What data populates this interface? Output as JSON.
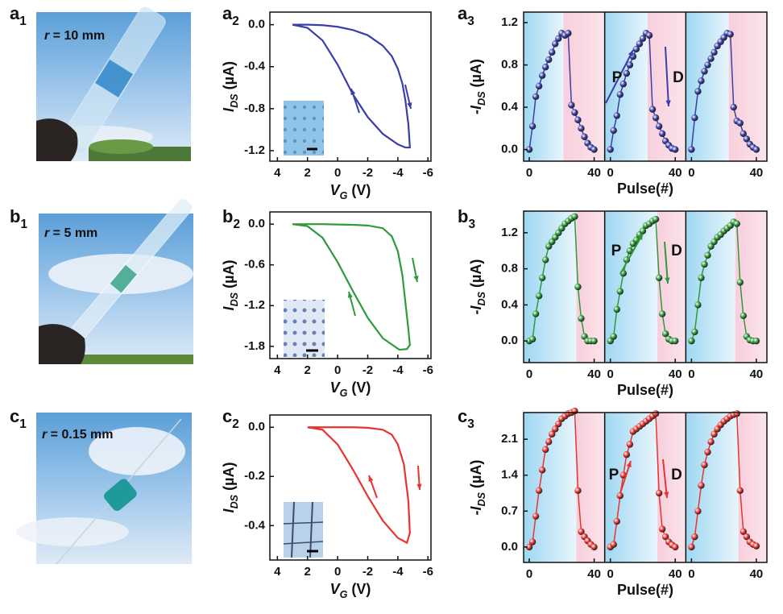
{
  "photos": [
    {
      "label": {
        "letter": "a",
        "sub": "1"
      },
      "caption": {
        "symbol": "r",
        "text": " = 10 mm"
      }
    },
    {
      "label": {
        "letter": "b",
        "sub": "1"
      },
      "caption": {
        "symbol": "r",
        "text": " = 5 mm"
      }
    },
    {
      "label": {
        "letter": "c",
        "sub": "1"
      },
      "caption": {
        "symbol": "r",
        "text": " = 0.15 mm"
      }
    }
  ],
  "chart_data": [
    {
      "type": "line",
      "label": {
        "letter": "a",
        "sub": "2"
      },
      "color": "#3a3ea6",
      "xlabel": {
        "symbol": "V",
        "sub": "G",
        "unit": "(V)"
      },
      "ylabel": {
        "symbol": "I",
        "sub": "DS",
        "unit": "(µA)"
      },
      "x": [
        3,
        2,
        1,
        0,
        -1,
        -2,
        -3,
        -3.6,
        -4,
        -4.3,
        -4.5,
        -4.7,
        -4.8,
        -4.5,
        -4,
        -3,
        -2,
        -1,
        0,
        1,
        2,
        3
      ],
      "values": [
        0,
        0,
        -0.005,
        -0.02,
        -0.05,
        -0.1,
        -0.2,
        -0.3,
        -0.42,
        -0.56,
        -0.72,
        -0.95,
        -1.17,
        -1.17,
        -1.14,
        -1.04,
        -0.88,
        -0.66,
        -0.38,
        -0.15,
        -0.03,
        0
      ],
      "xlim": [
        4.5,
        -6.2
      ],
      "xticks": [
        4,
        2,
        0,
        -2,
        -4,
        -6
      ],
      "ylim": [
        -1.3,
        0.12
      ],
      "yticks": [
        {
          "value": 0,
          "label": "0.0"
        },
        -0.4,
        -0.8,
        -1.2
      ]
    },
    {
      "type": "scatter",
      "label": {
        "letter": "a",
        "sub": "3"
      },
      "color": "#3a3ea6",
      "xlabel": "Pulse(#)",
      "ylabel": {
        "symbol": "-I",
        "sub": "DS",
        "unit": "(µA)"
      },
      "annotations": [
        "P",
        "D"
      ],
      "x": [
        0,
        2,
        4,
        6,
        8,
        10,
        12,
        14,
        16,
        18,
        20,
        22,
        24,
        26,
        28,
        30,
        32,
        34,
        36,
        38,
        40
      ],
      "series": [
        {
          "values": [
            0,
            0.22,
            0.5,
            0.6,
            0.7,
            0.78,
            0.85,
            0.92,
            1.0,
            1.05,
            1.1,
            1.08,
            1.1,
            0.42,
            0.35,
            0.28,
            0.2,
            0.12,
            0.06,
            0.02,
            0
          ]
        },
        {
          "values": [
            0,
            0.18,
            0.32,
            0.52,
            0.62,
            0.72,
            0.8,
            0.88,
            0.95,
            1.0,
            1.05,
            1.1,
            1.08,
            0.38,
            0.3,
            0.22,
            0.15,
            0.08,
            0.04,
            0.01,
            0
          ]
        },
        {
          "values": [
            0,
            0.3,
            0.55,
            0.65,
            0.74,
            0.8,
            0.86,
            0.92,
            0.98,
            1.02,
            1.06,
            1.1,
            1.09,
            0.4,
            0.27,
            0.25,
            0.15,
            0.1,
            0.05,
            0.02,
            0
          ]
        }
      ],
      "xlim": [
        -3.5,
        46.5
      ],
      "xticks": [
        0,
        40
      ],
      "ylim": [
        -0.11,
        1.3
      ],
      "yticks": [
        {
          "value": 0,
          "label": "0.0"
        },
        0.4,
        0.8,
        1.2
      ]
    },
    {
      "type": "line",
      "label": {
        "letter": "b",
        "sub": "2"
      },
      "color": "#2e9a3a",
      "xlabel": {
        "symbol": "V",
        "sub": "G",
        "unit": "(V)"
      },
      "ylabel": {
        "symbol": "I",
        "sub": "DS",
        "unit": "(µA)"
      },
      "x": [
        3,
        2,
        1,
        0,
        -1,
        -2,
        -3,
        -3.6,
        -4,
        -4.3,
        -4.5,
        -4.7,
        -4.8,
        -4.6,
        -4.1,
        -3,
        -2,
        -1,
        0,
        1,
        2,
        3
      ],
      "values": [
        0,
        0,
        0,
        -0.005,
        -0.01,
        -0.02,
        -0.06,
        -0.18,
        -0.4,
        -0.75,
        -1.15,
        -1.55,
        -1.78,
        -1.84,
        -1.85,
        -1.68,
        -1.38,
        -0.98,
        -0.56,
        -0.2,
        -0.03,
        0
      ],
      "xlim": [
        4.5,
        -6.2
      ],
      "xticks": [
        4,
        2,
        0,
        -2,
        -4,
        -6
      ],
      "ylim": [
        -1.98,
        0.18
      ],
      "yticks": [
        {
          "value": 0,
          "label": "0.0"
        },
        -0.6,
        -1.2,
        -1.8
      ]
    },
    {
      "type": "scatter",
      "label": {
        "letter": "b",
        "sub": "3"
      },
      "color": "#2e9a3a",
      "xlabel": "Pulse(#)",
      "ylabel": {
        "symbol": "-I",
        "sub": "DS",
        "unit": "(µA)"
      },
      "annotations": [
        "P",
        "D"
      ],
      "x": [
        0,
        2,
        4,
        6,
        8,
        10,
        12,
        14,
        16,
        18,
        20,
        22,
        24,
        26,
        28,
        30,
        32,
        34,
        36,
        38,
        40
      ],
      "series": [
        {
          "values": [
            0,
            0.02,
            0.3,
            0.5,
            0.7,
            0.9,
            1.05,
            1.1,
            1.15,
            1.2,
            1.25,
            1.3,
            1.33,
            1.36,
            1.38,
            0.6,
            0.25,
            0.05,
            0,
            0,
            0
          ]
        },
        {
          "values": [
            0,
            0.05,
            0.35,
            0.55,
            0.75,
            0.9,
            1.0,
            1.08,
            1.12,
            1.18,
            1.22,
            1.28,
            1.3,
            1.33,
            1.35,
            0.7,
            0.3,
            0.08,
            0.02,
            0,
            0
          ]
        },
        {
          "values": [
            0,
            0.1,
            0.4,
            0.7,
            0.85,
            0.95,
            1.05,
            1.1,
            1.15,
            1.18,
            1.22,
            1.25,
            1.28,
            1.32,
            1.3,
            0.65,
            0.28,
            0.05,
            0.01,
            0,
            0
          ]
        }
      ],
      "xlim": [
        -3.5,
        46.5
      ],
      "xticks": [
        0,
        40
      ],
      "ylim": [
        -0.24,
        1.44
      ],
      "yticks": [
        {
          "value": 0,
          "label": "0.0"
        },
        0.4,
        0.8,
        1.2
      ]
    },
    {
      "type": "line",
      "label": {
        "letter": "c",
        "sub": "2"
      },
      "color": "#e8332f",
      "xlabel": {
        "symbol": "V",
        "sub": "G",
        "unit": "(V)"
      },
      "ylabel": {
        "symbol": "I",
        "sub": "DS",
        "unit": "(µA)"
      },
      "x": [
        2,
        1,
        0,
        -1,
        -2,
        -3,
        -3.6,
        -4,
        -4.4,
        -4.7,
        -4.8,
        -4.6,
        -4,
        -3,
        -2,
        -1,
        0,
        1,
        2
      ],
      "values": [
        0,
        0,
        0,
        0,
        -0.002,
        -0.01,
        -0.03,
        -0.07,
        -0.15,
        -0.3,
        -0.43,
        -0.47,
        -0.45,
        -0.38,
        -0.28,
        -0.17,
        -0.07,
        -0.01,
        0
      ],
      "xlim": [
        4.5,
        -6.2
      ],
      "xticks": [
        4,
        2,
        0,
        -2,
        -4,
        -6
      ],
      "ylim": [
        -0.54,
        0.05
      ],
      "yticks": [
        {
          "value": 0,
          "label": "0.0"
        },
        -0.2,
        -0.4
      ]
    },
    {
      "type": "scatter",
      "label": {
        "letter": "c",
        "sub": "3"
      },
      "color": "#e8332f",
      "xlabel": "Pulse(#)",
      "ylabel": {
        "symbol": "-I",
        "sub": "DS",
        "unit": "(µA)"
      },
      "annotations": [
        "P",
        "D"
      ],
      "x": [
        0,
        2,
        4,
        6,
        8,
        10,
        12,
        14,
        16,
        18,
        20,
        22,
        24,
        26,
        28,
        30,
        32,
        34,
        36,
        38,
        40
      ],
      "series": [
        {
          "values": [
            0,
            0.1,
            0.6,
            1.1,
            1.5,
            1.9,
            2.05,
            2.2,
            2.3,
            2.4,
            2.5,
            2.55,
            2.6,
            2.62,
            2.65,
            1.1,
            0.3,
            0.2,
            0.12,
            0.05,
            0
          ]
        },
        {
          "values": [
            0,
            0.05,
            0.5,
            1.0,
            1.4,
            1.8,
            2.0,
            2.25,
            2.3,
            2.35,
            2.4,
            2.45,
            2.5,
            2.55,
            2.6,
            1.05,
            0.35,
            0.2,
            0.1,
            0.04,
            0
          ]
        },
        {
          "values": [
            0,
            0.2,
            0.7,
            1.2,
            1.6,
            1.85,
            2.05,
            2.2,
            2.3,
            2.38,
            2.45,
            2.5,
            2.55,
            2.58,
            2.6,
            1.1,
            0.3,
            0.2,
            0.1,
            0.05,
            0.02
          ]
        }
      ],
      "xlim": [
        -3.5,
        46.5
      ],
      "xticks": [
        0,
        40
      ],
      "ylim": [
        -0.3,
        2.62
      ],
      "yticks": [
        {
          "value": 0,
          "label": "0.0"
        },
        0.7,
        1.4,
        2.1
      ]
    }
  ]
}
